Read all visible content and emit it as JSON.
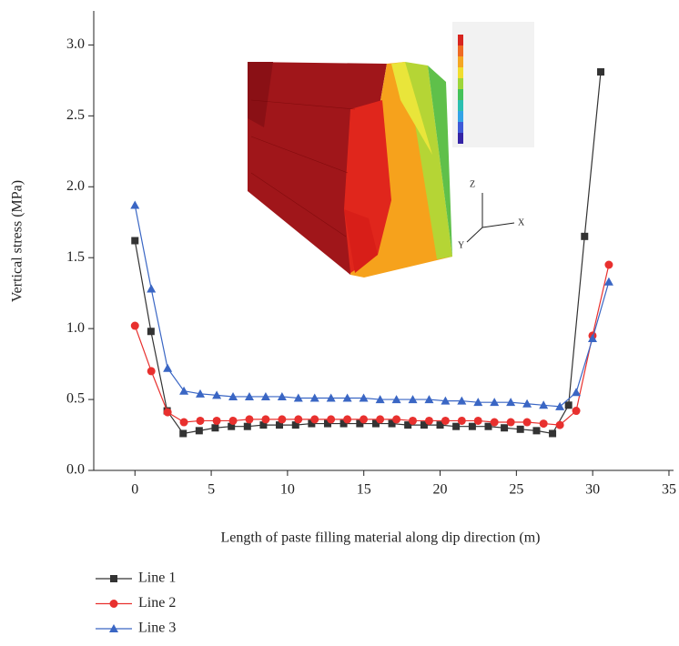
{
  "chart_data": {
    "type": "line",
    "x_label": "Length of paste filling material along dip direction (m)",
    "y_label": "Vertical stress (MPa)",
    "inset_axes": [
      "Z",
      "X",
      "Y"
    ],
    "xlim": [
      -2.7,
      35.3
    ],
    "ylim": [
      0,
      3.24
    ],
    "xticks": [
      0,
      5,
      10,
      15,
      20,
      25,
      30,
      35
    ],
    "yticks": [
      {
        "value": 0,
        "label": "0.0"
      },
      0.5,
      {
        "value": 1,
        "label": "1.0"
      },
      1.5,
      {
        "value": 2,
        "label": "2.0"
      },
      2.5,
      {
        "value": 3,
        "label": "3.0"
      }
    ],
    "series": [
      {
        "name": "Line 1",
        "color": "#333333",
        "marker": "square",
        "x": [
          0,
          1.05,
          2.11,
          3.16,
          4.21,
          5.26,
          6.32,
          7.37,
          8.42,
          9.47,
          10.53,
          11.58,
          12.63,
          13.68,
          14.74,
          15.79,
          16.84,
          17.89,
          18.95,
          20,
          21.05,
          22.11,
          23.16,
          24.21,
          25.26,
          26.32,
          27.37,
          28.42,
          29.47,
          30.53
        ],
        "values": [
          1.62,
          0.98,
          0.42,
          0.26,
          0.28,
          0.3,
          0.31,
          0.31,
          0.32,
          0.32,
          0.32,
          0.33,
          0.33,
          0.33,
          0.33,
          0.33,
          0.33,
          0.32,
          0.32,
          0.32,
          0.31,
          0.31,
          0.31,
          0.3,
          0.29,
          0.28,
          0.26,
          0.46,
          1.65,
          2.81
        ]
      },
      {
        "name": "Line 2",
        "color": "#e8302e",
        "marker": "circle",
        "x": [
          0,
          1.07,
          2.14,
          3.21,
          4.28,
          5.36,
          6.43,
          7.5,
          8.57,
          9.64,
          10.71,
          11.78,
          12.85,
          13.92,
          14.99,
          16.07,
          17.14,
          18.21,
          19.28,
          20.35,
          21.42,
          22.49,
          23.56,
          24.63,
          25.7,
          26.78,
          27.85,
          28.92,
          29.99,
          31.06
        ],
        "values": [
          1.02,
          0.7,
          0.41,
          0.34,
          0.35,
          0.35,
          0.35,
          0.36,
          0.36,
          0.36,
          0.36,
          0.36,
          0.36,
          0.36,
          0.36,
          0.36,
          0.36,
          0.35,
          0.35,
          0.35,
          0.35,
          0.35,
          0.34,
          0.34,
          0.34,
          0.33,
          0.32,
          0.42,
          0.95,
          1.45
        ]
      },
      {
        "name": "Line 3",
        "color": "#3a66c4",
        "marker": "triangle",
        "x": [
          0,
          1.07,
          2.14,
          3.21,
          4.28,
          5.36,
          6.43,
          7.5,
          8.57,
          9.64,
          10.71,
          11.78,
          12.85,
          13.92,
          14.99,
          16.07,
          17.14,
          18.21,
          19.28,
          20.35,
          21.42,
          22.49,
          23.56,
          24.63,
          25.7,
          26.78,
          27.85,
          28.92,
          29.99,
          31.06
        ],
        "values": [
          1.87,
          1.28,
          0.72,
          0.56,
          0.54,
          0.53,
          0.52,
          0.52,
          0.52,
          0.52,
          0.51,
          0.51,
          0.51,
          0.51,
          0.51,
          0.5,
          0.5,
          0.5,
          0.5,
          0.49,
          0.49,
          0.48,
          0.48,
          0.48,
          0.47,
          0.46,
          0.45,
          0.55,
          0.93,
          1.33
        ]
      }
    ]
  }
}
